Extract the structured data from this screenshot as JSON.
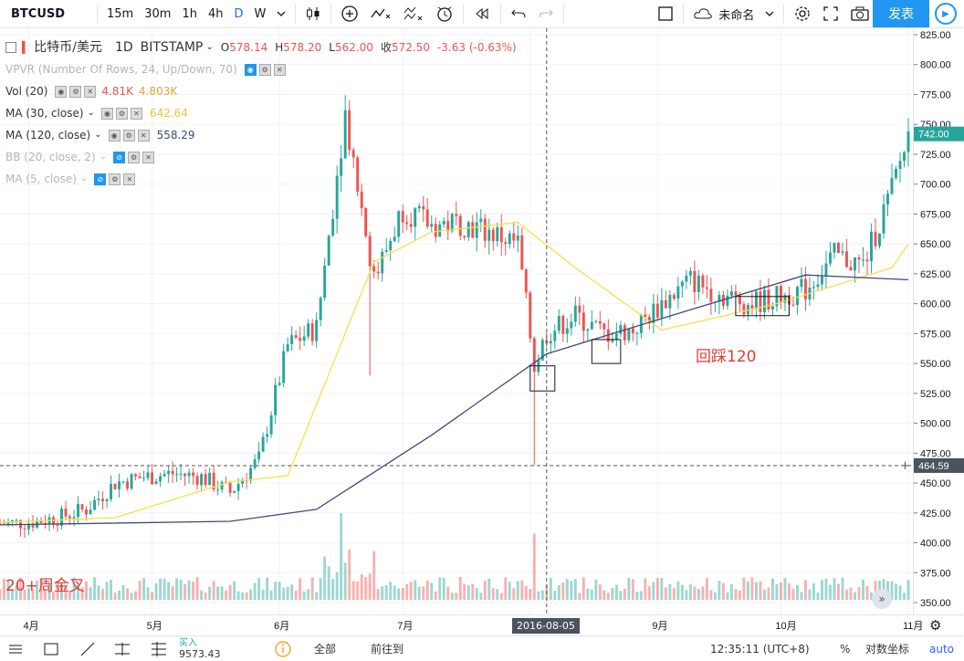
{
  "toolbar": {
    "symbol": "BTCUSD",
    "intervals": [
      "15m",
      "30m",
      "1h",
      "4h",
      "D",
      "W"
    ],
    "active_interval": "D",
    "layout_name": "未命名",
    "publish_label": "发表"
  },
  "legend": {
    "title": "比特币/美元",
    "interval": "1D",
    "exchange": "BITSTAMP",
    "o_label": "O",
    "o_value": "578.14",
    "h_label": "H",
    "h_value": "578.20",
    "l_label": "L",
    "l_value": "562.00",
    "c_label": "收",
    "c_value": "572.50",
    "change": "-3.63 (-0.63%)",
    "indicators": [
      {
        "name": "VPVR (Number Of Rows, 24, Up/Down, 70)",
        "values": []
      },
      {
        "name": "Vol (20)",
        "values": [
          "4.81K",
          "4.803K"
        ]
      },
      {
        "name": "MA (30, close)",
        "values": [
          "642.64"
        ]
      },
      {
        "name": "MA (120, close)",
        "values": [
          "558.29"
        ]
      },
      {
        "name": "BB (20, close, 2)",
        "values": []
      },
      {
        "name": "MA (5, close)",
        "values": []
      }
    ]
  },
  "colors": {
    "up": "#26a69a",
    "down": "#ef5350",
    "ma30": "#f5e050",
    "ma120": "#3f4a7a",
    "vol_value": "#ef5350",
    "ma30_value": "#e8c53a",
    "ma120_value": "#3f4a7a"
  },
  "annotations": {
    "golden_cross": "20+周金叉",
    "pullback": "回踩120"
  },
  "crosshair": {
    "date_label": "2016-08-05",
    "price_label": "464.59"
  },
  "bottom_bar": {
    "buy_label": "买入",
    "buy_value": "9573.43",
    "all_label": "全部",
    "goto_label": "前往到",
    "time_label": "12:35:11 (UTC+8)",
    "percent_label": "%",
    "log_label": "对数坐标",
    "auto_label": "auto"
  },
  "chart_data": {
    "type": "candlestick",
    "symbol": "BTCUSD",
    "y_ticks": [
      350,
      375,
      400,
      425,
      450,
      475,
      500,
      525,
      550,
      575,
      600,
      625,
      650,
      675,
      700,
      725,
      750,
      775,
      800,
      825
    ],
    "ylim": [
      345,
      830
    ],
    "x_ticks": [
      "4月",
      "5月",
      "6月",
      "7月",
      "8月",
      "9月",
      "10月",
      "11月"
    ],
    "last_price": 742.0,
    "series_close": [
      [
        "2016-03-25",
        416
      ],
      [
        "2016-04-01",
        417
      ],
      [
        "2016-04-08",
        421
      ],
      [
        "2016-04-15",
        428
      ],
      [
        "2016-04-22",
        450
      ],
      [
        "2016-04-29",
        455
      ],
      [
        "2016-05-06",
        458
      ],
      [
        "2016-05-13",
        455
      ],
      [
        "2016-05-20",
        442
      ],
      [
        "2016-05-27",
        470
      ],
      [
        "2016-06-03",
        565
      ],
      [
        "2016-06-10",
        580
      ],
      [
        "2016-06-17",
        760
      ],
      [
        "2016-06-24",
        620
      ],
      [
        "2016-07-01",
        680
      ],
      [
        "2016-07-08",
        665
      ],
      [
        "2016-07-15",
        668
      ],
      [
        "2016-07-22",
        660
      ],
      [
        "2016-07-29",
        650
      ],
      [
        "2016-08-02",
        548
      ],
      [
        "2016-08-05",
        575
      ],
      [
        "2016-08-12",
        590
      ],
      [
        "2016-08-19",
        575
      ],
      [
        "2016-08-26",
        578
      ],
      [
        "2016-09-02",
        600
      ],
      [
        "2016-09-09",
        620
      ],
      [
        "2016-09-16",
        608
      ],
      [
        "2016-09-23",
        600
      ],
      [
        "2016-09-30",
        605
      ],
      [
        "2016-10-07",
        612
      ],
      [
        "2016-10-14",
        640
      ],
      [
        "2016-10-21",
        632
      ],
      [
        "2016-10-28",
        695
      ],
      [
        "2016-11-01",
        742
      ]
    ],
    "ma30": [
      [
        "2016-03-25",
        417
      ],
      [
        "2016-04-22",
        421
      ],
      [
        "2016-05-20",
        451
      ],
      [
        "2016-06-03",
        456
      ],
      [
        "2016-06-24",
        635
      ],
      [
        "2016-07-08",
        660
      ],
      [
        "2016-07-29",
        668
      ],
      [
        "2016-08-12",
        630
      ],
      [
        "2016-09-02",
        578
      ],
      [
        "2016-09-30",
        600
      ],
      [
        "2016-10-28",
        630
      ],
      [
        "2016-11-01",
        650
      ]
    ],
    "ma120": [
      [
        "2016-03-25",
        415
      ],
      [
        "2016-05-20",
        418
      ],
      [
        "2016-06-10",
        428
      ],
      [
        "2016-07-08",
        490
      ],
      [
        "2016-08-05",
        558
      ],
      [
        "2016-09-09",
        595
      ],
      [
        "2016-10-07",
        624
      ],
      [
        "2016-11-01",
        620
      ]
    ],
    "annotated_boxes": [
      {
        "from": "2016-08-01",
        "to": "2016-08-07",
        "low": 527,
        "high": 548
      },
      {
        "from": "2016-08-16",
        "to": "2016-08-23",
        "low": 550,
        "high": 570
      },
      {
        "from": "2016-09-20",
        "to": "2016-10-03",
        "low": 590,
        "high": 606
      }
    ]
  }
}
